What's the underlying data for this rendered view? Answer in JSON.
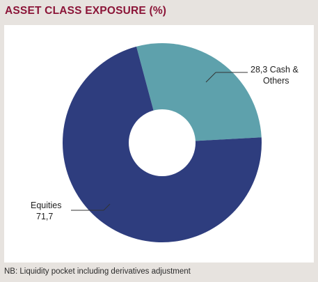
{
  "title": "ASSET CLASS EXPOSURE (%)",
  "colors": {
    "title": "#8b1538",
    "background": "#e7e3df",
    "panel": "#ffffff",
    "leader": "#333333"
  },
  "chart_data": {
    "type": "pie",
    "style": "donut",
    "slices": [
      {
        "label": "Cash & Others",
        "value_text": "28,3",
        "value": 28.3,
        "color": "#5ea1ac"
      },
      {
        "label": "Equities",
        "value_text": "71,7",
        "value": 71.7,
        "color": "#2e3d7e"
      }
    ]
  },
  "labels": {
    "cash_line1": "28,3  Cash &",
    "cash_line2": "Others",
    "equities_line1": "Equities",
    "equities_line2": "71,7"
  },
  "footnote": "NB: Liquidity pocket including derivatives adjustment"
}
